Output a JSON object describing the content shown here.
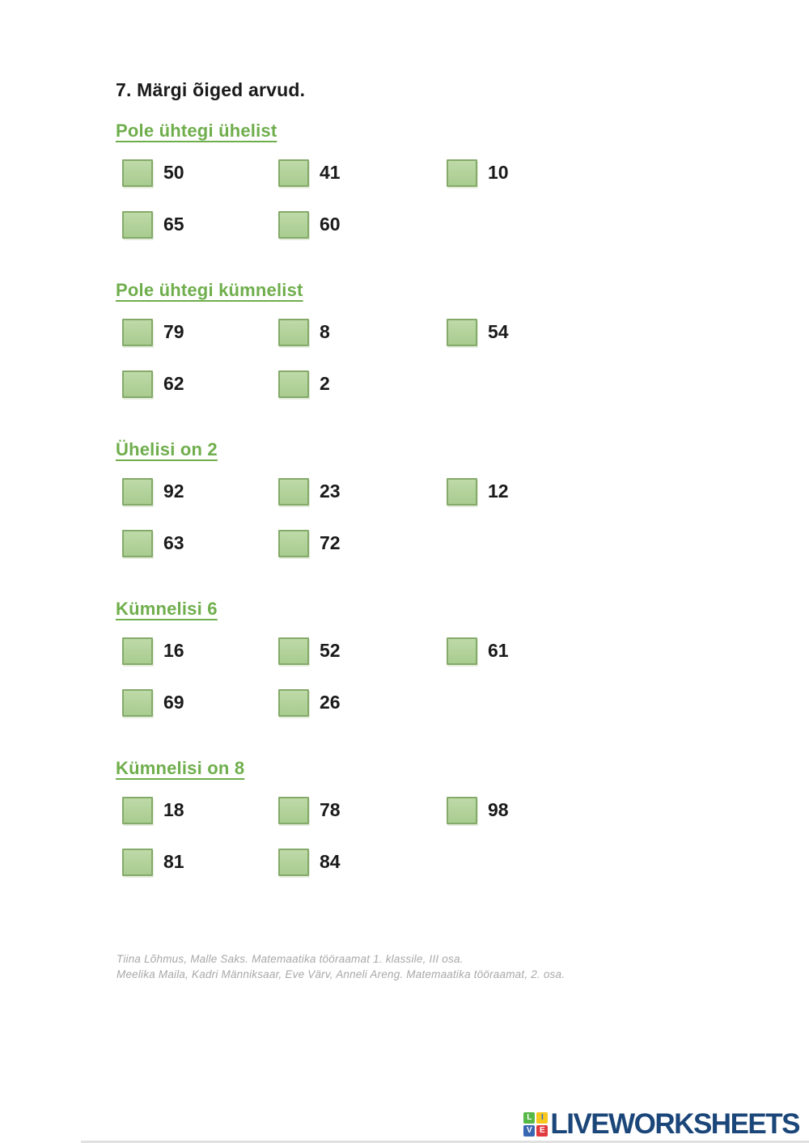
{
  "page": {
    "title": "7. Märgi õiged arvud."
  },
  "sections": [
    {
      "heading": "Pole ühtegi ühelist",
      "options": [
        "50",
        "41",
        "10",
        "65",
        "60"
      ]
    },
    {
      "heading": "Pole ühtegi kümnelist",
      "options": [
        "79",
        "8",
        "54",
        "62",
        "2"
      ]
    },
    {
      "heading": "Ühelisi on 2",
      "options": [
        "92",
        "23",
        "12",
        "63",
        "72"
      ]
    },
    {
      "heading": "Kümnelisi 6",
      "options": [
        "16",
        "52",
        "61",
        "69",
        "26"
      ]
    },
    {
      "heading": "Kümnelisi on 8",
      "options": [
        "18",
        "78",
        "98",
        "81",
        "84"
      ]
    }
  ],
  "citation": {
    "line1": "Tiina Lõhmus, Malle Saks. Matemaatika tööraamat 1. klassile, III osa.",
    "line2": "Meelika Maila, Kadri Männiksaar, Eve Värv, Anneli Areng. Matemaatika tööraamat, 2. osa."
  },
  "footer_logo": {
    "brand": "LIVEWORKSHEETS",
    "tiles": [
      {
        "letter": "L",
        "bg": "#56b847",
        "fg": "#ffffff"
      },
      {
        "letter": "I",
        "bg": "#f8c81e",
        "fg": "#2f6fd0"
      },
      {
        "letter": "V",
        "bg": "#3a67b2",
        "fg": "#ffffff"
      },
      {
        "letter": "E",
        "bg": "#e23b3f",
        "fg": "#ffffff"
      }
    ]
  },
  "colors": {
    "heading_green": "#6fae4c",
    "checkbox_fill": "#b2d29a",
    "checkbox_border": "#84aa69",
    "number_text": "#1a1a1a",
    "citation_gray": "#a8a8a8",
    "logo_navy": "#1b4679"
  }
}
